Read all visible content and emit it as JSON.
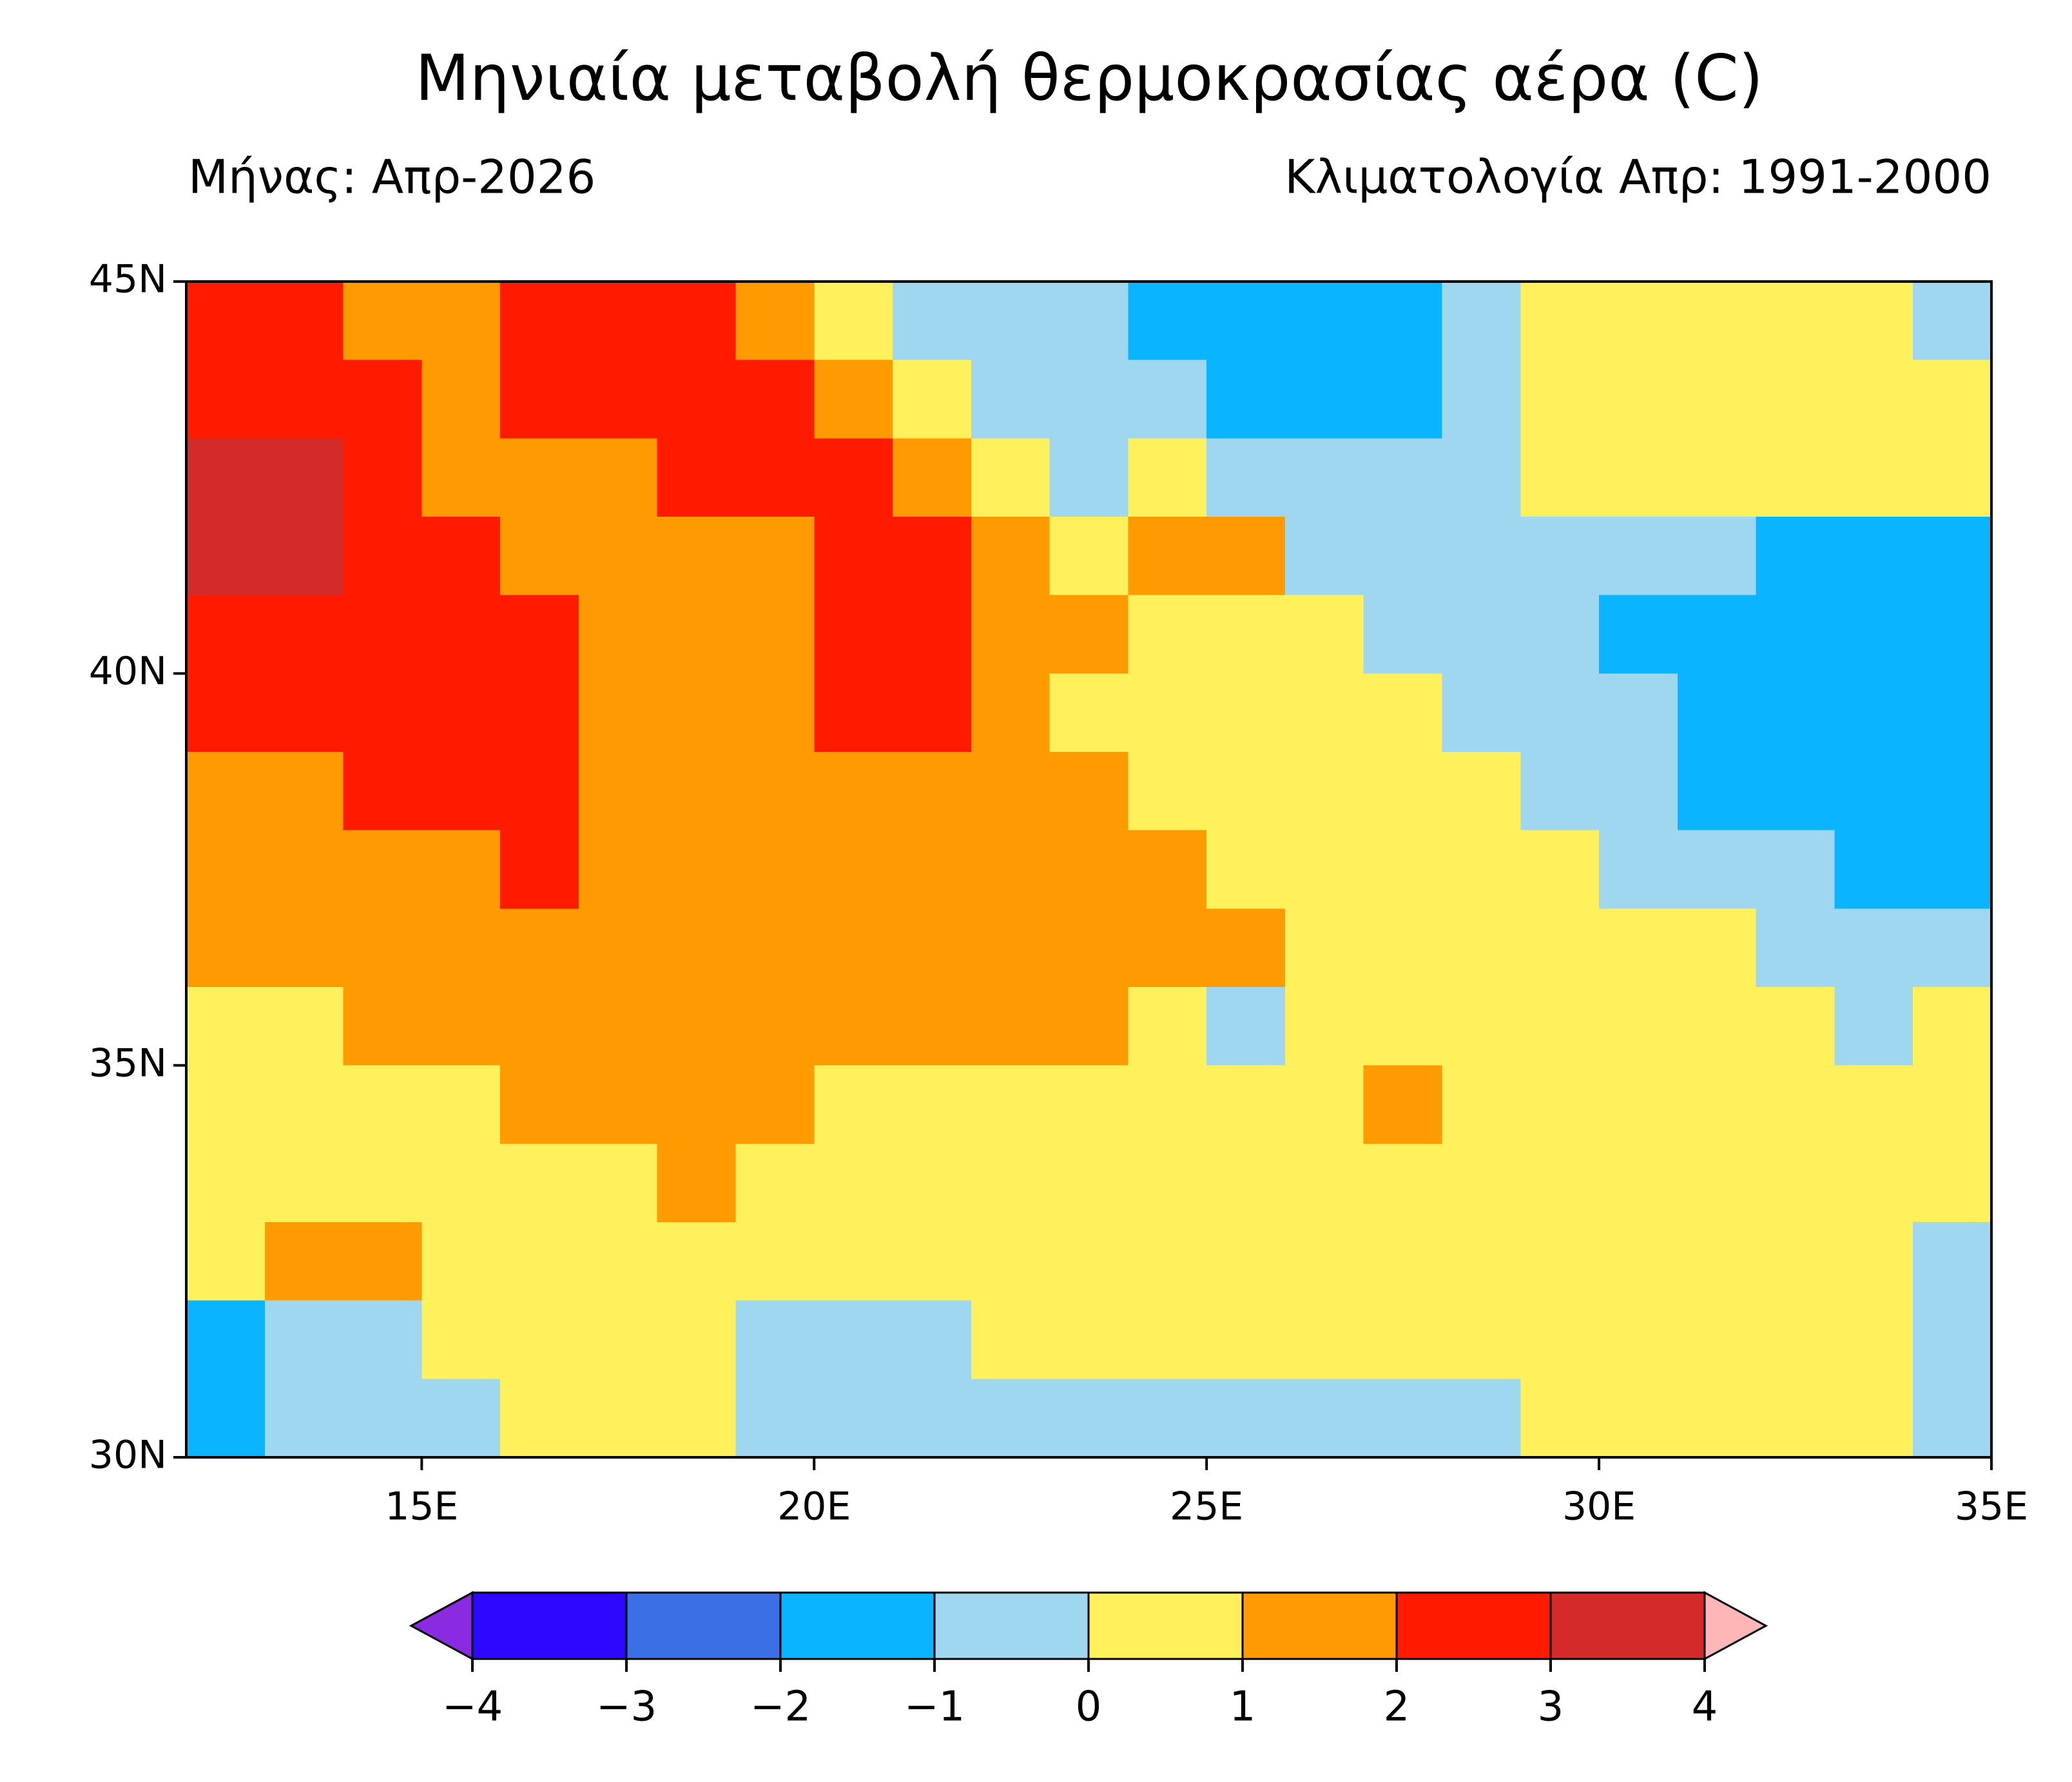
{
  "chart_data": {
    "type": "gridmap",
    "title": "Μηνιαία μεταβολή θερμοκρασίας αέρα  (C)",
    "subtitle_left": "Μήνας: Απρ-2026",
    "subtitle_right": "Κλιματολογία Απρ: 1991-2000",
    "xlim": [
      12,
      35
    ],
    "ylim": [
      30,
      45
    ],
    "xticks": [
      {
        "value": 15,
        "label": "15E"
      },
      {
        "value": 20,
        "label": "20E"
      },
      {
        "value": 25,
        "label": "25E"
      },
      {
        "value": 30,
        "label": "30E"
      },
      {
        "value": 35,
        "label": "35E"
      }
    ],
    "yticks": [
      {
        "value": 30,
        "label": "30N"
      },
      {
        "value": 35,
        "label": "35N"
      },
      {
        "value": 40,
        "label": "40N"
      },
      {
        "value": 45,
        "label": "45N"
      }
    ],
    "x": [
      12.5,
      13.5,
      14.5,
      15.5,
      16.5,
      17.5,
      18.5,
      19.5,
      20.5,
      21.5,
      22.5,
      23.5,
      24.5,
      25.5,
      26.5,
      27.5,
      28.5,
      29.5,
      30.5,
      31.5,
      32.5,
      33.5,
      34.5
    ],
    "y": [
      44.5,
      43.5,
      42.5,
      41.5,
      40.5,
      39.5,
      38.5,
      37.5,
      36.5,
      35.5,
      34.5,
      33.5,
      32.5,
      31.5,
      30.5
    ],
    "z": [
      [
        2.3,
        2.2,
        1.8,
        1.7,
        2.2,
        2.5,
        2.4,
        1.6,
        0.8,
        -0.4,
        -0.6,
        -0.8,
        -1.2,
        -1.4,
        -1.4,
        -1.3,
        -1.0,
        0.6,
        0.7,
        0.7,
        0.7,
        0.5,
        -0.6
      ],
      [
        2.8,
        2.6,
        2.0,
        1.8,
        2.0,
        2.4,
        2.6,
        2.2,
        1.6,
        0.5,
        -0.4,
        -0.7,
        -1.0,
        -1.3,
        -1.5,
        -1.3,
        -0.8,
        0.6,
        0.8,
        0.8,
        0.8,
        0.7,
        0.6
      ],
      [
        3.0,
        3.1,
        2.5,
        1.6,
        1.4,
        1.8,
        2.0,
        2.2,
        2.1,
        1.8,
        0.5,
        -0.4,
        0.6,
        -0.3,
        -0.6,
        -0.5,
        -0.4,
        0.5,
        0.7,
        0.7,
        0.8,
        0.6,
        0.5
      ],
      [
        3.2,
        3.3,
        2.8,
        2.0,
        1.6,
        1.5,
        1.7,
        1.8,
        2.2,
        2.1,
        1.4,
        0.7,
        1.3,
        1.0,
        -0.3,
        -0.5,
        -0.6,
        -0.4,
        -0.6,
        -0.8,
        -1.2,
        -1.3,
        -1.8
      ],
      [
        2.2,
        2.4,
        2.6,
        2.6,
        2.3,
        1.6,
        1.7,
        1.8,
        2.3,
        2.3,
        1.5,
        1.1,
        0.8,
        0.6,
        0.5,
        -0.3,
        -0.6,
        -1.0,
        -1.2,
        -1.5,
        -1.8,
        -1.8,
        -1.9
      ],
      [
        2.0,
        2.0,
        2.1,
        2.5,
        2.6,
        1.6,
        1.4,
        1.6,
        2.1,
        2.4,
        1.4,
        0.8,
        0.7,
        0.6,
        0.7,
        0.6,
        -0.5,
        -1.0,
        -1.0,
        -1.3,
        -1.6,
        -1.8,
        -1.9
      ],
      [
        1.6,
        1.8,
        2.0,
        2.0,
        2.4,
        1.8,
        1.5,
        1.5,
        1.6,
        1.8,
        1.9,
        1.4,
        0.8,
        0.6,
        0.7,
        0.6,
        0.4,
        -0.4,
        -0.6,
        -1.1,
        -1.5,
        -1.8,
        -1.6
      ],
      [
        1.4,
        1.6,
        1.6,
        1.6,
        2.0,
        1.7,
        1.5,
        1.4,
        1.4,
        1.6,
        1.8,
        1.5,
        1.0,
        0.8,
        0.7,
        0.7,
        0.6,
        0.4,
        -0.4,
        -0.7,
        -1.0,
        -1.3,
        -1.4
      ],
      [
        1.2,
        1.4,
        1.4,
        1.3,
        1.3,
        1.4,
        1.4,
        1.3,
        1.3,
        1.4,
        1.4,
        1.3,
        1.1,
        1.0,
        0.9,
        0.9,
        0.8,
        0.8,
        0.8,
        0.7,
        -0.6,
        -1.0,
        -0.5
      ],
      [
        0.7,
        0.8,
        1.0,
        1.1,
        1.1,
        1.2,
        1.2,
        1.2,
        1.2,
        1.1,
        1.0,
        1.0,
        0.9,
        -0.4,
        0.9,
        0.9,
        0.8,
        0.9,
        0.9,
        0.8,
        0.7,
        -0.5,
        0.5
      ],
      [
        0.6,
        0.7,
        0.8,
        0.9,
        1.0,
        1.0,
        1.0,
        1.0,
        0.9,
        0.8,
        0.8,
        0.8,
        0.8,
        0.8,
        0.9,
        1.0,
        0.9,
        0.9,
        0.9,
        0.8,
        0.8,
        0.7,
        0.6
      ],
      [
        0.5,
        0.6,
        0.6,
        0.7,
        0.8,
        0.9,
        1.0,
        0.9,
        0.8,
        0.7,
        0.7,
        0.7,
        0.8,
        0.8,
        0.8,
        0.9,
        0.9,
        0.9,
        0.9,
        0.9,
        0.8,
        0.7,
        0.6
      ],
      [
        0.8,
        1.1,
        1.2,
        0.9,
        0.7,
        0.6,
        0.8,
        0.7,
        0.5,
        0.4,
        0.4,
        0.5,
        0.6,
        0.6,
        0.7,
        0.8,
        0.8,
        0.7,
        0.7,
        0.8,
        0.8,
        0.7,
        -0.3
      ],
      [
        -1.2,
        -0.6,
        -0.3,
        0.4,
        0.5,
        0.4,
        0.5,
        -0.4,
        -0.5,
        -0.4,
        0.4,
        0.5,
        0.5,
        0.4,
        0.5,
        0.6,
        0.6,
        0.7,
        0.7,
        0.5,
        0.4,
        0.5,
        -0.5
      ],
      [
        -1.6,
        -0.8,
        -0.5,
        -0.4,
        0.3,
        0.4,
        0.6,
        -0.3,
        -0.5,
        -0.6,
        -0.4,
        -0.5,
        -0.8,
        -0.9,
        -0.5,
        -0.3,
        -0.4,
        0.3,
        0.4,
        0.3,
        0.5,
        0.6,
        -0.4
      ]
    ],
    "colorbar": {
      "ticks": [
        {
          "value": -4,
          "label": "−4"
        },
        {
          "value": -3,
          "label": "−3"
        },
        {
          "value": -2,
          "label": "−2"
        },
        {
          "value": -1,
          "label": "−1"
        },
        0,
        1,
        2,
        3,
        4
      ],
      "colors": [
        "#2c08ff",
        "#3b6fe6",
        "#0bb4ff",
        "#9fd6f0",
        "#fff05c",
        "#ff9a00",
        "#ff1a00",
        "#d42a2a"
      ],
      "under": "#8a2be2",
      "over": "#ffb6b6"
    }
  }
}
